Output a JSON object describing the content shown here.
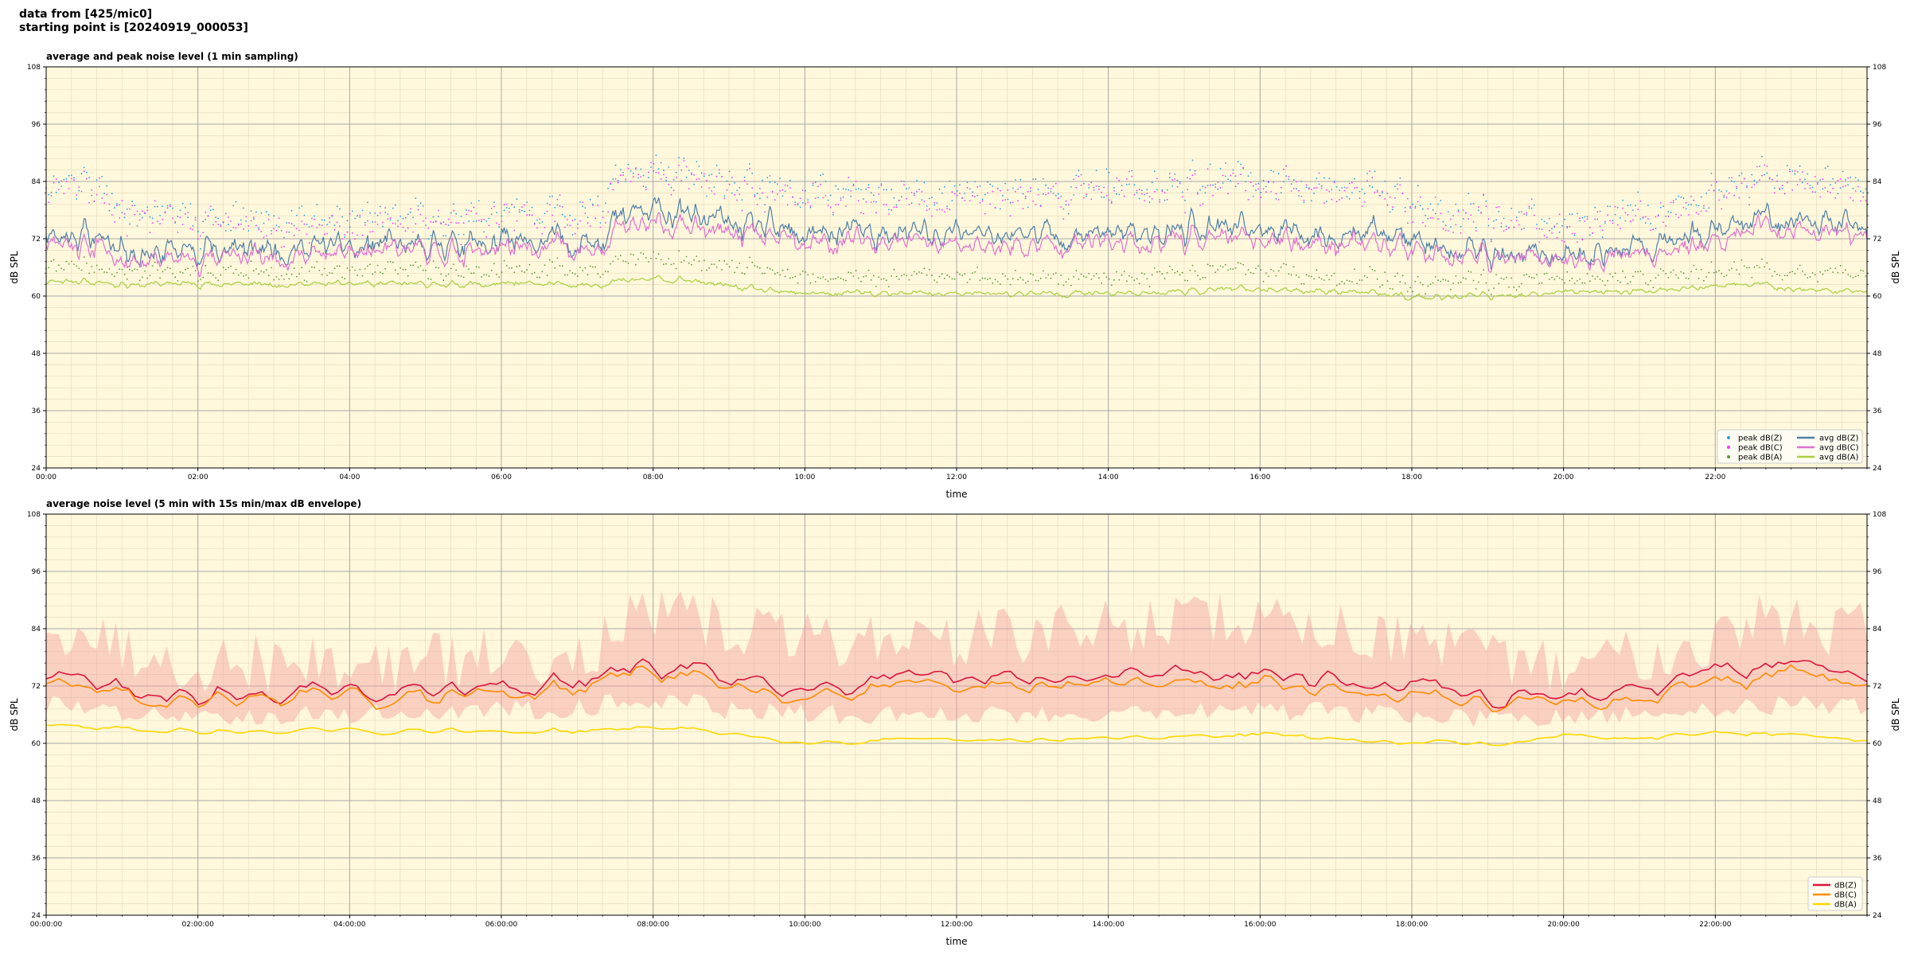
{
  "header": {
    "line1": "data from [425/mic0]",
    "line2": "starting point is [20240919_000053]"
  },
  "colors": {
    "background": "#fff8dc",
    "peak_z": "#1f9fe0",
    "peak_c": "#ff33ff",
    "peak_a": "#5a9a3a",
    "avg_z": "#4f7fa8",
    "avg_c": "#e070d0",
    "avg_a": "#a8d040",
    "dbz": "#dc143c",
    "dbc": "#ff8c00",
    "dba": "#ffd700",
    "envelope": "#f4a0a0"
  },
  "chart_data": [
    {
      "type": "line",
      "title": "average and peak noise level (1 min sampling)",
      "xlabel": "time",
      "ylabel": "dB SPL",
      "xlim": [
        0,
        24
      ],
      "ylim": [
        24,
        108
      ],
      "yticks": [
        24,
        36,
        48,
        60,
        72,
        84,
        96,
        108
      ],
      "xtick_labels": [
        "00:00",
        "02:00",
        "04:00",
        "06:00",
        "08:00",
        "10:00",
        "12:00",
        "14:00",
        "16:00",
        "18:00",
        "20:00",
        "22:00"
      ],
      "grid": true,
      "legend_position": "bottom-right",
      "legend": [
        "peak dB(Z)",
        "peak dB(C)",
        "peak dB(A)",
        "avg dB(Z)",
        "avg dB(C)",
        "avg dB(A)"
      ],
      "profile_hours": [
        0,
        0.5,
        1,
        1.5,
        2,
        3,
        4,
        5,
        6,
        7,
        7.3,
        7.5,
        8,
        8.5,
        9,
        9.5,
        10,
        11,
        12,
        13,
        14,
        15,
        16,
        17,
        18,
        18.5,
        19,
        19.5,
        20,
        21,
        22,
        22.5,
        23,
        24
      ],
      "series": [
        {
          "name": "avg dB(Z)",
          "style": "line",
          "values": [
            74,
            73,
            70,
            69,
            69.5,
            70,
            70,
            70.5,
            71,
            71.5,
            72,
            76,
            78,
            77,
            75,
            74,
            73,
            73,
            73,
            73,
            73,
            74,
            74,
            73,
            72.5,
            70,
            69,
            69,
            68.5,
            70.5,
            73,
            76,
            76,
            75
          ],
          "jitter": 3.5
        },
        {
          "name": "avg dB(C)",
          "style": "line",
          "values": [
            72,
            71,
            68,
            67.5,
            68,
            68.5,
            69,
            69,
            69.5,
            70,
            70.5,
            73.5,
            75,
            74.5,
            72.5,
            72,
            71,
            71,
            70.5,
            70.5,
            71,
            72,
            72,
            71,
            70.5,
            69,
            68,
            68,
            67.5,
            69,
            71,
            74,
            74,
            73
          ],
          "jitter": 3.0
        },
        {
          "name": "avg dB(A)",
          "style": "line",
          "values": [
            63.5,
            63,
            62.5,
            62.5,
            62.5,
            62.5,
            62.5,
            62.5,
            62.5,
            62.5,
            62.5,
            63,
            63.5,
            63,
            62,
            61,
            60.5,
            60.5,
            60.5,
            60.5,
            60.5,
            61,
            61.5,
            61,
            60,
            60,
            60,
            60,
            61,
            61,
            62,
            62.5,
            61.5,
            61
          ],
          "jitter": 0.8
        },
        {
          "name": "peak dB(Z)",
          "style": "points",
          "values": [
            85,
            84,
            79,
            77,
            76,
            76,
            75.5,
            76,
            77,
            78,
            80,
            84,
            86,
            85,
            83,
            82,
            81,
            81,
            81,
            82,
            83,
            84,
            84,
            83,
            81,
            78,
            77,
            76,
            75,
            78,
            81,
            85,
            85,
            84
          ],
          "jitter": 4.0
        },
        {
          "name": "peak dB(C)",
          "style": "points",
          "values": [
            84,
            83,
            78,
            76,
            75,
            75,
            74.5,
            75,
            76,
            77,
            79,
            83,
            85,
            84,
            82,
            81,
            80,
            80,
            80,
            81,
            82,
            83,
            83,
            82,
            80,
            77,
            76,
            75,
            74,
            77,
            80,
            84,
            84,
            83
          ],
          "jitter": 4.0
        },
        {
          "name": "peak dB(A)",
          "style": "points",
          "values": [
            67,
            66,
            65,
            65,
            65,
            65,
            65,
            65,
            65,
            65.5,
            66,
            67,
            68,
            67,
            66,
            65,
            64,
            64,
            64,
            64,
            64,
            65,
            65,
            64,
            63,
            63,
            63,
            63,
            64,
            64,
            65,
            66,
            65,
            65
          ],
          "jitter": 2.0
        }
      ]
    },
    {
      "type": "line",
      "title": "average noise level (5 min with 15s min/max dB envelope)",
      "xlabel": "time",
      "ylabel": "dB SPL",
      "xlim": [
        0,
        24
      ],
      "ylim": [
        24,
        108
      ],
      "yticks": [
        24,
        36,
        48,
        60,
        72,
        84,
        96,
        108
      ],
      "xtick_labels": [
        "00:00:00",
        "02:00:00",
        "04:00:00",
        "06:00:00",
        "08:00:00",
        "10:00:00",
        "12:00:00",
        "14:00:00",
        "16:00:00",
        "18:00:00",
        "20:00:00",
        "22:00:00"
      ],
      "grid": true,
      "legend_position": "bottom-right",
      "legend": [
        "dB(Z)",
        "dB(C)",
        "dB(A)"
      ],
      "profile_hours": [
        0,
        0.5,
        1,
        1.5,
        2,
        3,
        4,
        5,
        6,
        7,
        7.3,
        7.5,
        8,
        8.5,
        9,
        9.5,
        10,
        11,
        12,
        13,
        14,
        15,
        16,
        17,
        18,
        18.5,
        19,
        19.5,
        20,
        21,
        22,
        22.5,
        23,
        24
      ],
      "series": [
        {
          "name": "dB(Z)",
          "values": [
            74,
            74,
            71,
            70,
            70,
            70.5,
            70.5,
            71,
            71.5,
            72,
            72.5,
            76,
            76.5,
            76,
            74,
            73,
            72.5,
            73,
            73,
            73.5,
            74,
            75,
            75,
            73,
            72,
            71,
            70,
            70,
            69.5,
            71,
            74,
            76.5,
            76,
            75
          ],
          "jitter": 2.2
        },
        {
          "name": "dB(C)",
          "values": [
            72,
            72,
            69.5,
            69,
            69,
            69.5,
            69.5,
            70,
            70.5,
            71,
            71.5,
            74,
            74.5,
            74,
            72,
            71,
            70.5,
            71,
            71,
            71.5,
            72,
            73,
            73,
            71,
            70,
            69,
            68.5,
            68.5,
            68,
            69.5,
            72,
            74.5,
            74,
            73
          ],
          "jitter": 2.0
        },
        {
          "name": "dB(A)",
          "values": [
            63.5,
            63.5,
            63,
            62.5,
            62.5,
            62.5,
            62.5,
            62.5,
            62.5,
            62.5,
            62.5,
            63,
            63.5,
            63,
            62,
            61,
            60.5,
            60.5,
            60.5,
            60.5,
            61,
            61.5,
            62,
            61,
            60,
            60,
            60,
            60,
            61.5,
            61,
            62,
            62.5,
            61.5,
            61
          ],
          "jitter": 0.6
        },
        {
          "name": "min/max envelope",
          "band_low": [
            68,
            67.5,
            66.5,
            66,
            66,
            66,
            66,
            66.5,
            67,
            67.5,
            68,
            69,
            69,
            68.5,
            67,
            66.5,
            66,
            66,
            66,
            66,
            66.5,
            67,
            67,
            66.5,
            66,
            65.5,
            65,
            65,
            65,
            66,
            67,
            68,
            68,
            68
          ],
          "band_high": [
            85,
            84,
            80,
            78,
            77,
            77,
            76.5,
            77,
            78,
            79,
            81,
            85,
            86,
            86,
            84,
            83,
            82,
            82,
            82,
            83,
            84,
            86,
            86,
            84,
            82,
            79,
            78,
            77,
            76,
            79,
            82,
            86,
            85,
            84
          ]
        }
      ]
    }
  ]
}
